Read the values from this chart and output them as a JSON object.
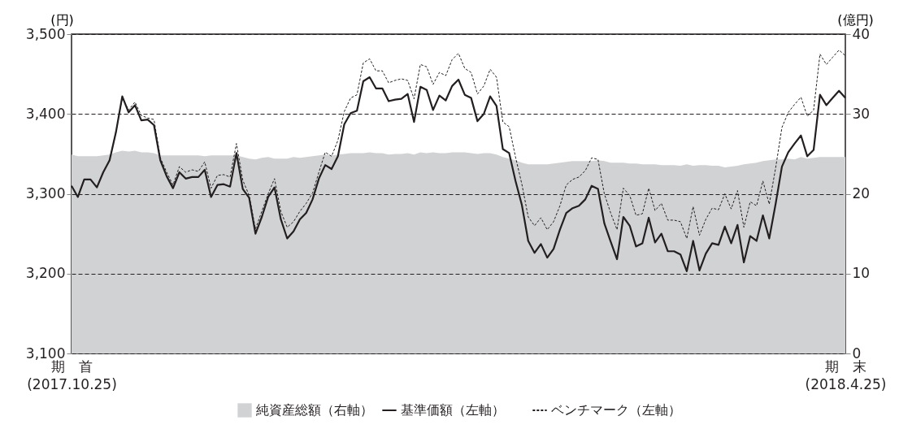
{
  "chart_data": {
    "type": "line",
    "ylabel": "(円)",
    "y2label": "(億円)",
    "categories": [
      "期　首\n(2017.10.25)",
      null,
      null,
      null,
      null,
      null,
      null,
      null,
      null,
      null,
      null,
      null,
      null,
      null,
      null,
      null,
      null,
      null,
      null,
      null,
      null,
      null,
      null,
      null,
      null,
      null,
      null,
      null,
      null,
      null,
      null,
      null,
      null,
      null,
      null,
      null,
      null,
      null,
      null,
      null,
      null,
      null,
      null,
      null,
      null,
      null,
      null,
      null,
      null,
      null,
      null,
      null,
      null,
      null,
      null,
      null,
      null,
      null,
      null,
      null,
      null,
      null,
      null,
      null,
      null,
      null,
      null,
      null,
      null,
      null,
      null,
      null,
      null,
      null,
      null,
      null,
      null,
      null,
      null,
      null,
      null,
      null,
      null,
      null,
      null,
      null,
      null,
      null,
      null,
      null,
      null,
      null,
      null,
      null,
      null,
      null,
      null,
      null,
      null,
      null,
      null,
      null,
      null,
      null,
      null,
      null,
      null,
      null,
      null,
      null,
      null,
      null,
      null,
      null,
      null,
      null,
      null,
      null,
      null,
      null,
      null,
      null,
      "期　末\n(2018.4.25)"
    ],
    "series": [
      {
        "name": "純資産総額（右軸）",
        "type": "area",
        "axis": "y2",
        "color": "#d1d2d4",
        "values": [
          24.9,
          24.7,
          24.7,
          24.7,
          24.7,
          24.8,
          24.9,
          25.2,
          25.4,
          25.3,
          25.4,
          25.2,
          25.2,
          25.1,
          24.8,
          24.8,
          24.8,
          24.8,
          24.8,
          24.8,
          24.8,
          24.7,
          24.8,
          24.8,
          24.8,
          24.8,
          24.8,
          24.6,
          24.4,
          24.3,
          24.5,
          24.6,
          24.4,
          24.4,
          24.4,
          24.6,
          24.5,
          24.6,
          24.7,
          24.8,
          24.9,
          24.8,
          24.9,
          25.0,
          25.1,
          25.1,
          25.1,
          25.2,
          25.1,
          25.1,
          24.9,
          25.0,
          25.0,
          25.1,
          24.9,
          25.2,
          25.1,
          25.2,
          25.1,
          25.1,
          25.2,
          25.2,
          25.2,
          25.1,
          25.0,
          25.1,
          25.1,
          24.9,
          24.6,
          24.4,
          24.2,
          23.9,
          23.7,
          23.7,
          23.7,
          23.7,
          23.8,
          23.9,
          24.0,
          24.1,
          24.1,
          24.1,
          24.1,
          24.2,
          24.1,
          23.9,
          23.9,
          23.9,
          23.8,
          23.8,
          23.7,
          23.7,
          23.7,
          23.6,
          23.6,
          23.6,
          23.5,
          23.7,
          23.5,
          23.6,
          23.6,
          23.5,
          23.5,
          23.3,
          23.4,
          23.5,
          23.7,
          23.8,
          23.9,
          24.1,
          24.2,
          24.3,
          24.3,
          24.4,
          24.3,
          24.6,
          24.4,
          24.5,
          24.6,
          24.6,
          24.6,
          24.6,
          24.6
        ]
      },
      {
        "name": "基準価額（左軸）",
        "line_style": "solid",
        "color": "#231f20",
        "values": [
          3310,
          3296,
          3318,
          3318,
          3308,
          3327,
          3342,
          3377,
          3422,
          3402,
          3411,
          3392,
          3393,
          3386,
          3342,
          3322,
          3307,
          3327,
          3319,
          3321,
          3321,
          3330,
          3296,
          3311,
          3312,
          3309,
          3351,
          3306,
          3295,
          3250,
          3271,
          3296,
          3308,
          3268,
          3244,
          3253,
          3268,
          3276,
          3293,
          3319,
          3336,
          3331,
          3347,
          3387,
          3401,
          3404,
          3441,
          3446,
          3432,
          3432,
          3416,
          3418,
          3419,
          3425,
          3390,
          3434,
          3430,
          3405,
          3423,
          3417,
          3435,
          3443,
          3424,
          3420,
          3391,
          3400,
          3422,
          3410,
          3356,
          3351,
          3316,
          3286,
          3241,
          3226,
          3237,
          3220,
          3231,
          3255,
          3276,
          3282,
          3285,
          3293,
          3310,
          3306,
          3263,
          3240,
          3218,
          3271,
          3260,
          3234,
          3238,
          3270,
          3239,
          3250,
          3228,
          3228,
          3224,
          3203,
          3241,
          3204,
          3225,
          3238,
          3236,
          3259,
          3238,
          3261,
          3214,
          3247,
          3241,
          3273,
          3244,
          3287,
          3334,
          3352,
          3363,
          3373,
          3347,
          3355,
          3424,
          3411,
          3420,
          3429,
          3420
        ]
      },
      {
        "name": "ベンチマーク（左軸）",
        "line_style": "dashed",
        "color": "#231f20",
        "values": [
          3310,
          3296,
          3318,
          3318,
          3308,
          3327,
          3342,
          3377,
          3420,
          3405,
          3415,
          3398,
          3395,
          3393,
          3345,
          3327,
          3311,
          3334,
          3327,
          3330,
          3328,
          3340,
          3307,
          3323,
          3324,
          3321,
          3363,
          3317,
          3298,
          3256,
          3278,
          3300,
          3319,
          3278,
          3258,
          3265,
          3278,
          3288,
          3301,
          3327,
          3352,
          3347,
          3367,
          3403,
          3420,
          3424,
          3464,
          3469,
          3454,
          3454,
          3439,
          3442,
          3444,
          3442,
          3419,
          3462,
          3459,
          3437,
          3452,
          3448,
          3468,
          3476,
          3457,
          3452,
          3425,
          3435,
          3456,
          3446,
          3390,
          3384,
          3346,
          3312,
          3271,
          3260,
          3270,
          3255,
          3265,
          3285,
          3311,
          3318,
          3321,
          3329,
          3345,
          3343,
          3300,
          3276,
          3255,
          3307,
          3298,
          3273,
          3275,
          3307,
          3279,
          3288,
          3267,
          3267,
          3265,
          3244,
          3284,
          3248,
          3268,
          3282,
          3280,
          3300,
          3281,
          3304,
          3258,
          3290,
          3285,
          3316,
          3287,
          3332,
          3383,
          3402,
          3412,
          3421,
          3397,
          3405,
          3475,
          3462,
          3471,
          3480,
          3473
        ]
      }
    ],
    "ylim": [
      3100,
      3500
    ],
    "yticks": [
      {
        "value": 3100,
        "label": "3,100"
      },
      {
        "value": 3200,
        "label": "3,200"
      },
      {
        "value": 3300,
        "label": "3,300"
      },
      {
        "value": 3400,
        "label": "3,400"
      },
      {
        "value": 3500,
        "label": "3,500"
      }
    ],
    "y2lim": [
      0,
      40
    ],
    "y2ticks": [
      0,
      10,
      20,
      30,
      40
    ],
    "grid": "y",
    "legend": "bottom"
  }
}
